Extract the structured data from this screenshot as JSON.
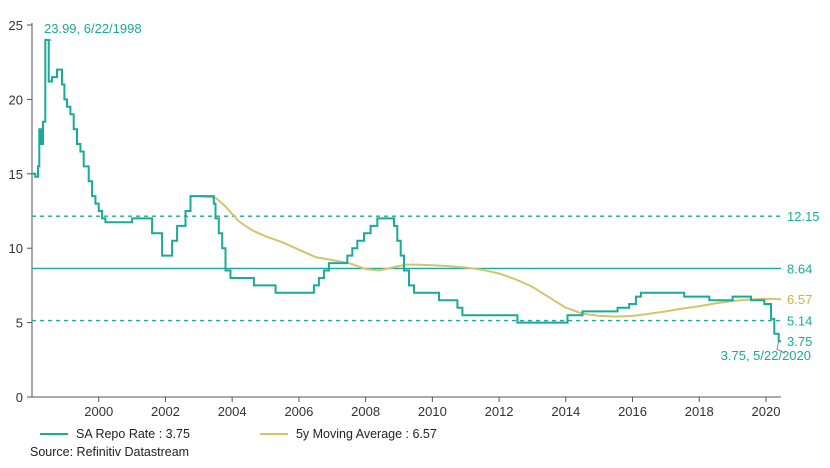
{
  "chart_data": {
    "type": "line",
    "title": "",
    "xlabel": "",
    "ylabel": "",
    "xlim": [
      1998.0,
      2020.45
    ],
    "ylim": [
      0,
      25
    ],
    "x_ticks": [
      2000,
      2002,
      2004,
      2006,
      2008,
      2010,
      2012,
      2014,
      2016,
      2018,
      2020
    ],
    "x_tick_labels": [
      "2000",
      "2002",
      "2004",
      "2006",
      "2008",
      "2010",
      "2012",
      "2014",
      "2016",
      "2018",
      "2020"
    ],
    "y_ticks": [
      0,
      5,
      10,
      15,
      20,
      25
    ],
    "y_tick_labels": [
      "0",
      "5",
      "10",
      "15",
      "20",
      "25"
    ],
    "grid": false,
    "legend_position": "bottom-left",
    "series": [
      {
        "name": "SA Repo Rate : 3.75",
        "color": "#1aa99a",
        "step": true,
        "points": [
          [
            1998.0,
            15.0
          ],
          [
            1998.1,
            14.8
          ],
          [
            1998.18,
            15.5
          ],
          [
            1998.22,
            18.0
          ],
          [
            1998.27,
            17.0
          ],
          [
            1998.33,
            18.5
          ],
          [
            1998.4,
            24.0
          ],
          [
            1998.47,
            23.99
          ],
          [
            1998.5,
            21.2
          ],
          [
            1998.6,
            21.5
          ],
          [
            1998.75,
            22.0
          ],
          [
            1998.9,
            21.0
          ],
          [
            1998.97,
            20.0
          ],
          [
            1999.05,
            19.5
          ],
          [
            1999.15,
            19.0
          ],
          [
            1999.25,
            18.0
          ],
          [
            1999.35,
            17.0
          ],
          [
            1999.45,
            16.5
          ],
          [
            1999.55,
            15.5
          ],
          [
            1999.7,
            14.5
          ],
          [
            1999.8,
            13.5
          ],
          [
            1999.9,
            13.0
          ],
          [
            2000.0,
            12.5
          ],
          [
            2000.1,
            12.0
          ],
          [
            2000.2,
            11.75
          ],
          [
            2001.0,
            12.0
          ],
          [
            2001.6,
            11.0
          ],
          [
            2001.9,
            9.5
          ],
          [
            2002.2,
            10.5
          ],
          [
            2002.35,
            11.5
          ],
          [
            2002.6,
            12.5
          ],
          [
            2002.75,
            13.5
          ],
          [
            2003.45,
            13.0
          ],
          [
            2003.5,
            12.0
          ],
          [
            2003.6,
            11.0
          ],
          [
            2003.7,
            10.0
          ],
          [
            2003.8,
            8.5
          ],
          [
            2003.95,
            8.0
          ],
          [
            2004.65,
            7.5
          ],
          [
            2005.3,
            7.0
          ],
          [
            2006.45,
            7.5
          ],
          [
            2006.6,
            8.0
          ],
          [
            2006.75,
            8.5
          ],
          [
            2006.9,
            9.0
          ],
          [
            2007.45,
            9.5
          ],
          [
            2007.6,
            10.0
          ],
          [
            2007.75,
            10.5
          ],
          [
            2007.95,
            11.0
          ],
          [
            2008.15,
            11.5
          ],
          [
            2008.35,
            12.0
          ],
          [
            2008.85,
            11.5
          ],
          [
            2008.95,
            10.5
          ],
          [
            2009.05,
            9.5
          ],
          [
            2009.15,
            8.5
          ],
          [
            2009.3,
            7.5
          ],
          [
            2009.45,
            7.0
          ],
          [
            2010.2,
            6.5
          ],
          [
            2010.75,
            6.0
          ],
          [
            2010.9,
            5.5
          ],
          [
            2012.55,
            5.0
          ],
          [
            2014.05,
            5.5
          ],
          [
            2014.5,
            5.75
          ],
          [
            2015.55,
            6.0
          ],
          [
            2015.9,
            6.25
          ],
          [
            2016.1,
            6.75
          ],
          [
            2016.25,
            7.0
          ],
          [
            2017.55,
            6.75
          ],
          [
            2018.3,
            6.5
          ],
          [
            2019.0,
            6.75
          ],
          [
            2019.55,
            6.5
          ],
          [
            2019.95,
            6.25
          ],
          [
            2020.15,
            5.25
          ],
          [
            2020.25,
            4.25
          ],
          [
            2020.38,
            3.75
          ],
          [
            2020.45,
            3.75
          ]
        ]
      },
      {
        "name": "5y Moving Average : 6.57",
        "color": "#d4c46a",
        "step": false,
        "points": [
          [
            2003.0,
            13.5
          ],
          [
            2003.5,
            13.4
          ],
          [
            2003.8,
            12.8
          ],
          [
            2004.2,
            11.8
          ],
          [
            2004.6,
            11.2
          ],
          [
            2005.0,
            10.8
          ],
          [
            2005.5,
            10.4
          ],
          [
            2006.0,
            9.9
          ],
          [
            2006.5,
            9.4
          ],
          [
            2007.0,
            9.2
          ],
          [
            2007.5,
            9.0
          ],
          [
            2008.0,
            8.6
          ],
          [
            2008.4,
            8.5
          ],
          [
            2008.8,
            8.7
          ],
          [
            2009.2,
            8.9
          ],
          [
            2009.5,
            8.9
          ],
          [
            2010.0,
            8.85
          ],
          [
            2010.5,
            8.8
          ],
          [
            2011.0,
            8.7
          ],
          [
            2011.5,
            8.55
          ],
          [
            2012.0,
            8.3
          ],
          [
            2012.5,
            7.9
          ],
          [
            2013.0,
            7.4
          ],
          [
            2013.5,
            6.7
          ],
          [
            2014.0,
            6.0
          ],
          [
            2014.5,
            5.6
          ],
          [
            2015.0,
            5.45
          ],
          [
            2015.5,
            5.4
          ],
          [
            2016.0,
            5.45
          ],
          [
            2016.5,
            5.6
          ],
          [
            2017.0,
            5.75
          ],
          [
            2017.5,
            5.95
          ],
          [
            2018.0,
            6.1
          ],
          [
            2018.5,
            6.3
          ],
          [
            2019.0,
            6.45
          ],
          [
            2019.5,
            6.55
          ],
          [
            2020.0,
            6.6
          ],
          [
            2020.45,
            6.57
          ]
        ]
      }
    ],
    "reference_lines": [
      {
        "value": 12.15,
        "label": "12.15",
        "style": "dashed",
        "color": "#1aa99a"
      },
      {
        "value": 8.64,
        "label": "8.64",
        "style": "solid",
        "color": "#1aa99a"
      },
      {
        "value": 5.14,
        "label": "5.14",
        "style": "dashed",
        "color": "#1aa99a"
      }
    ],
    "end_labels": [
      {
        "value": 6.57,
        "label": "6.57",
        "color": "#c8b44a"
      },
      {
        "value": 3.75,
        "label": "3.75",
        "color": "#1aa99a"
      }
    ],
    "annotations": [
      {
        "x": 1998.47,
        "y": 23.99,
        "text": "23.99, 6/22/1998",
        "color": "#1aa99a"
      },
      {
        "x": 2020.38,
        "y": 3.75,
        "text": "3.75, 5/22/2020",
        "color": "#1aa99a"
      }
    ],
    "source": "Source: Refinitiv Datastream"
  }
}
